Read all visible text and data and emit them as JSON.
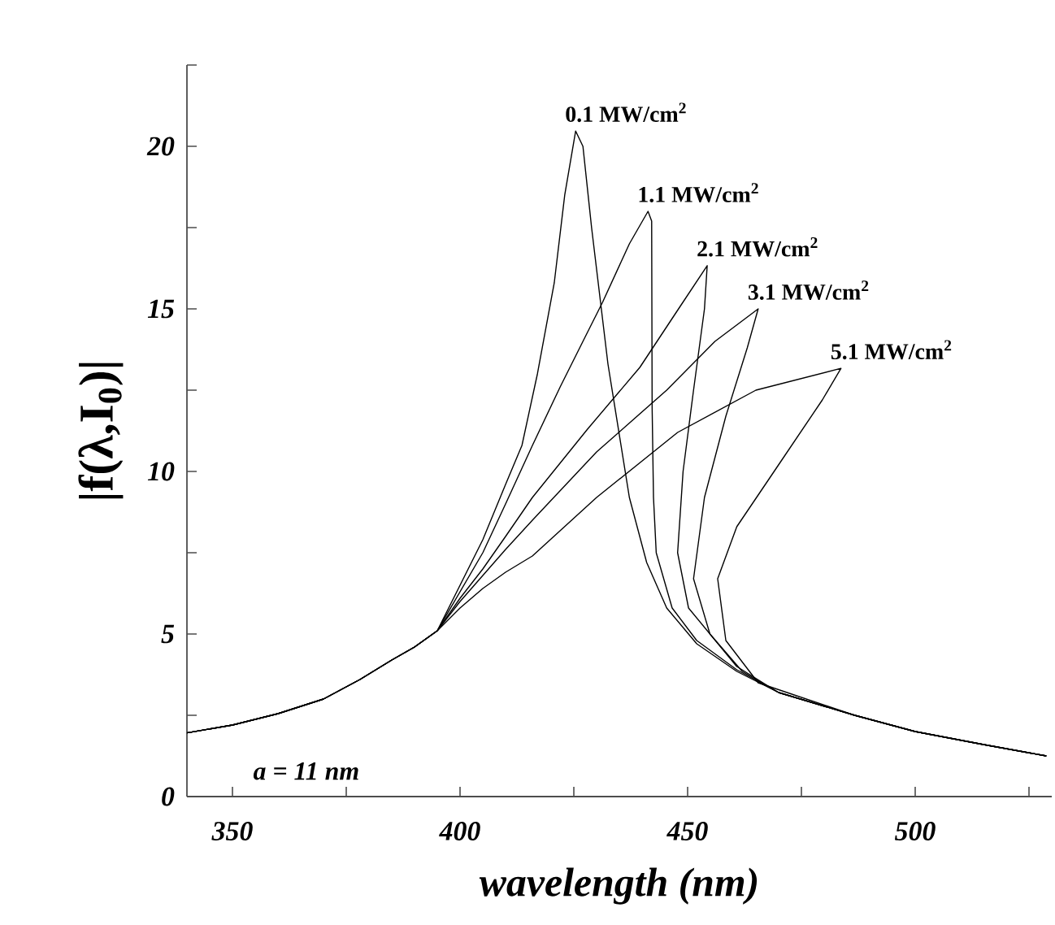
{
  "chart_data": {
    "type": "line",
    "xlabel": "wavelength (nm)",
    "ylabel": "|f(λ,I$_{0}$)|",
    "annotations": [
      "a = 11 nm"
    ],
    "xlim": [
      340,
      530
    ],
    "ylim": [
      0,
      22.5
    ],
    "xticks": [
      350,
      {
        "value": 375,
        "label": null
      },
      400,
      {
        "value": 425,
        "label": null
      },
      450,
      {
        "value": 475,
        "label": null
      },
      500,
      {
        "value": 525,
        "label": null
      }
    ],
    "yticks": [
      0,
      {
        "value": 2.5,
        "label": null
      },
      5,
      {
        "value": 7.5,
        "label": null
      },
      10,
      {
        "value": 12.5,
        "label": null
      },
      15,
      {
        "value": 17.5,
        "label": null
      },
      20,
      {
        "value": 22.5,
        "label": null
      }
    ],
    "grid": false,
    "legend": false,
    "marker": "none",
    "line_style": "solid",
    "series": [
      {
        "name": "0.1 MW/cm$^{2}$",
        "color": "#000000",
        "x": [
          340,
          350,
          360,
          370,
          378,
          385,
          390,
          395,
          400,
          405,
          410,
          413.6,
          417,
          420.7,
          423,
          425.4,
          427,
          428.9,
          432.5,
          437.2,
          441,
          445.4,
          452,
          460.8,
          470,
          486.7,
          500,
          515,
          528.8
        ],
        "values": [
          1.96,
          2.2,
          2.55,
          3.0,
          3.6,
          4.2,
          4.6,
          5.1,
          6.5,
          7.9,
          9.6,
          10.8,
          13.0,
          15.8,
          18.5,
          20.47,
          20.0,
          17.5,
          13.3,
          9.2,
          7.2,
          5.8,
          4.7,
          3.85,
          3.2,
          2.5,
          2.0,
          1.6,
          1.25
        ]
      },
      {
        "name": "1.1 MW/cm$^{2}$",
        "color": "#000000",
        "x": [
          340,
          350,
          360,
          370,
          378,
          385,
          390,
          395,
          400,
          405,
          410,
          415.9,
          422,
          427,
          431.3,
          437.2,
          441.3,
          442.1,
          442.2,
          442.5,
          443.1,
          446.6,
          452,
          460.8,
          470,
          486.7,
          500,
          515,
          528.8
        ],
        "values": [
          1.96,
          2.2,
          2.55,
          3.0,
          3.6,
          4.2,
          4.6,
          5.1,
          6.3,
          7.5,
          9.0,
          10.8,
          12.6,
          14.0,
          15.2,
          17.0,
          18.0,
          17.7,
          12.0,
          9.2,
          7.5,
          5.8,
          4.8,
          3.9,
          3.2,
          2.5,
          2.0,
          1.6,
          1.25
        ]
      },
      {
        "name": "2.1 MW/cm$^{2}$",
        "color": "#000000",
        "x": [
          340,
          350,
          360,
          370,
          378,
          385,
          390,
          395,
          400,
          405,
          410,
          415.9,
          428,
          439.5,
          448,
          454.3,
          453.7,
          451.3,
          449,
          447.8,
          450.2,
          460.8,
          470,
          486.7,
          500,
          515,
          528.8
        ],
        "values": [
          1.96,
          2.2,
          2.55,
          3.0,
          3.6,
          4.2,
          4.6,
          5.1,
          6.1,
          7.0,
          8.0,
          9.2,
          11.3,
          13.2,
          15.0,
          16.33,
          15.0,
          12.5,
          10.0,
          7.5,
          5.8,
          4.0,
          3.2,
          2.5,
          2.0,
          1.6,
          1.25
        ]
      },
      {
        "name": "3.1 MW/cm$^{2}$",
        "color": "#000000",
        "x": [
          340,
          350,
          360,
          370,
          378,
          385,
          390,
          395,
          400,
          405,
          410,
          415.9,
          430,
          445.4,
          456,
          465.5,
          463.1,
          458.4,
          453.7,
          451.3,
          454.9,
          462,
          470,
          486.7,
          500,
          515,
          528.8
        ],
        "values": [
          1.96,
          2.2,
          2.55,
          3.0,
          3.6,
          4.2,
          4.6,
          5.1,
          6.0,
          6.8,
          7.6,
          8.5,
          10.6,
          12.5,
          14.0,
          15.0,
          13.8,
          11.7,
          9.2,
          6.7,
          5.0,
          3.85,
          3.2,
          2.5,
          2.0,
          1.6,
          1.25
        ]
      },
      {
        "name": "5.1 MW/cm$^{2}$",
        "color": "#000000",
        "x": [
          340,
          350,
          360,
          370,
          378,
          385,
          390,
          395,
          400,
          405,
          410,
          415.9,
          430,
          447.8,
          465,
          483.7,
          479.6,
          469,
          460.8,
          456.6,
          458.4,
          465.5,
          486.7,
          500,
          515,
          528.8
        ],
        "values": [
          1.96,
          2.2,
          2.55,
          3.0,
          3.6,
          4.2,
          4.6,
          5.1,
          5.8,
          6.4,
          6.9,
          7.4,
          9.2,
          11.2,
          12.5,
          13.17,
          12.2,
          10.0,
          8.3,
          6.7,
          4.8,
          3.5,
          2.5,
          2.0,
          1.6,
          1.25
        ]
      }
    ]
  }
}
